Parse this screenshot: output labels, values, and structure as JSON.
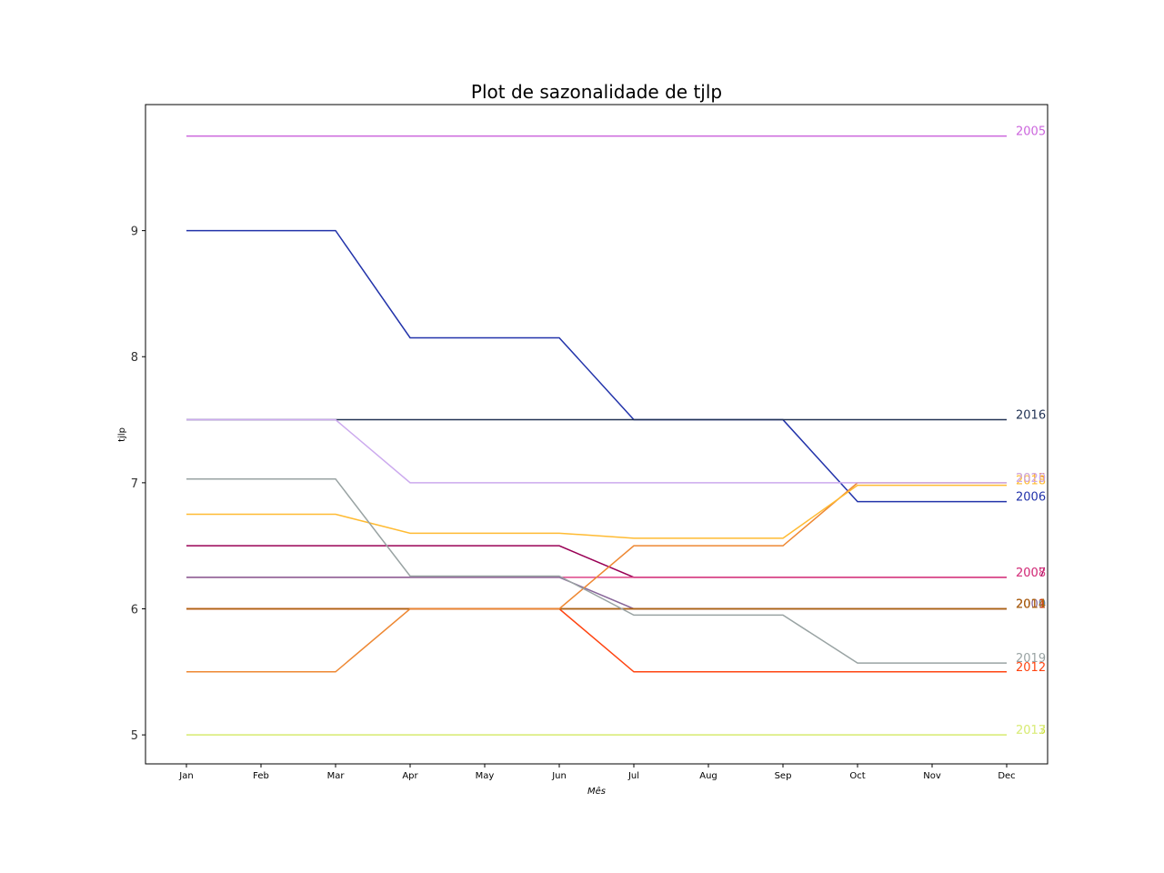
{
  "chart_data": {
    "type": "line",
    "title": "Plot de sazonalidade de tjlp",
    "xlabel": "Mês",
    "ylabel": "tjlp",
    "categories": [
      "Jan",
      "Feb",
      "Mar",
      "Apr",
      "May",
      "Jun",
      "Jul",
      "Aug",
      "Sep",
      "Oct",
      "Nov",
      "Dec"
    ],
    "ylim": [
      4.77,
      10.0
    ],
    "yticks": [
      5,
      6,
      7,
      8,
      9
    ],
    "grid": false,
    "series": [
      {
        "name": "2005",
        "color": "#cc66dd",
        "values": [
          9.75,
          9.75,
          9.75,
          9.75,
          9.75,
          9.75,
          9.75,
          9.75,
          9.75,
          9.75,
          9.75,
          9.75
        ]
      },
      {
        "name": "2006",
        "color": "#2233aa",
        "values": [
          9.0,
          9.0,
          9.0,
          8.15,
          8.15,
          8.15,
          7.5,
          7.5,
          7.5,
          6.85,
          6.85,
          6.85
        ]
      },
      {
        "name": "2007",
        "color": "#990055",
        "values": [
          6.5,
          6.5,
          6.5,
          6.5,
          6.5,
          6.5,
          6.25,
          6.25,
          6.25,
          6.25,
          6.25,
          6.25
        ]
      },
      {
        "name": "2008",
        "color": "#dd4488",
        "values": [
          6.25,
          6.25,
          6.25,
          6.25,
          6.25,
          6.25,
          6.25,
          6.25,
          6.25,
          6.25,
          6.25,
          6.25
        ]
      },
      {
        "name": "2009",
        "color": "#886699",
        "values": [
          6.25,
          6.25,
          6.25,
          6.25,
          6.25,
          6.25,
          6.0,
          6.0,
          6.0,
          6.0,
          6.0,
          6.0
        ]
      },
      {
        "name": "2010",
        "color": "#6688aa",
        "values": [
          6.0,
          6.0,
          6.0,
          6.0,
          6.0,
          6.0,
          6.0,
          6.0,
          6.0,
          6.0,
          6.0,
          6.0
        ]
      },
      {
        "name": "2011",
        "color": "#dd3300",
        "values": [
          6.0,
          6.0,
          6.0,
          6.0,
          6.0,
          6.0,
          6.0,
          6.0,
          6.0,
          6.0,
          6.0,
          6.0
        ]
      },
      {
        "name": "2012",
        "color": "#ff4411",
        "values": [
          6.0,
          6.0,
          6.0,
          6.0,
          6.0,
          6.0,
          5.5,
          5.5,
          5.5,
          5.5,
          5.5,
          5.5
        ]
      },
      {
        "name": "2013",
        "color": "#ccdd33",
        "values": [
          5.0,
          5.0,
          5.0,
          5.0,
          5.0,
          5.0,
          5.0,
          5.0,
          5.0,
          5.0,
          5.0,
          5.0
        ]
      },
      {
        "name": "2014",
        "color": "#aa6611",
        "values": [
          6.0,
          6.0,
          6.0,
          6.0,
          6.0,
          6.0,
          6.0,
          6.0,
          6.0,
          6.0,
          6.0,
          6.0
        ]
      },
      {
        "name": "2015",
        "color": "#ee8833",
        "values": [
          5.5,
          5.5,
          5.5,
          6.0,
          6.0,
          6.0,
          6.5,
          6.5,
          6.5,
          7.0,
          7.0,
          7.0
        ]
      },
      {
        "name": "2016",
        "color": "#223355",
        "values": [
          7.5,
          7.5,
          7.5,
          7.5,
          7.5,
          7.5,
          7.5,
          7.5,
          7.5,
          7.5,
          7.5,
          7.5
        ]
      },
      {
        "name": "2017",
        "color": "#ddee88",
        "values": [
          5.0,
          5.0,
          5.0,
          5.0,
          5.0,
          5.0,
          5.0,
          5.0,
          5.0,
          5.0,
          5.0,
          5.0
        ]
      },
      {
        "name": "2018",
        "color": "#ffbb33",
        "values": [
          6.75,
          6.75,
          6.75,
          6.6,
          6.6,
          6.6,
          6.56,
          6.56,
          6.56,
          6.98,
          6.98,
          6.98
        ]
      },
      {
        "name": "2019",
        "color": "#99a3a3",
        "values": [
          7.03,
          7.03,
          7.03,
          6.26,
          6.26,
          6.26,
          5.95,
          5.95,
          5.95,
          5.57,
          5.57,
          5.57
        ]
      },
      {
        "name": "2020",
        "color": "#ccaaee",
        "values": [
          7.5,
          7.5,
          7.5,
          7.0,
          7.0,
          7.0,
          7.0,
          7.0,
          7.0,
          7.0,
          7.0,
          7.0
        ]
      }
    ]
  }
}
